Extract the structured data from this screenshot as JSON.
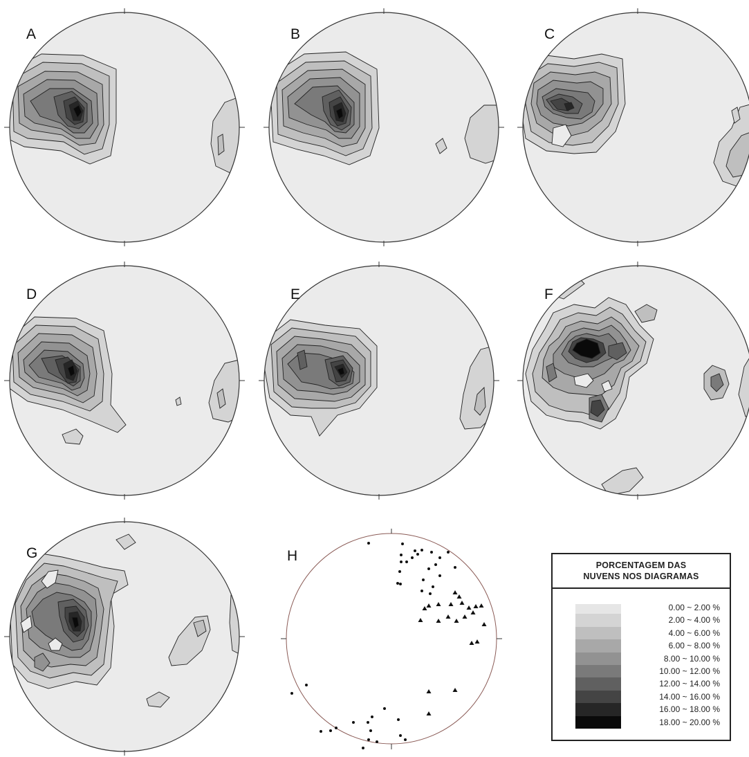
{
  "panels": [
    {
      "letter": "A"
    },
    {
      "letter": "B"
    },
    {
      "letter": "C"
    },
    {
      "letter": "D"
    },
    {
      "letter": "E"
    },
    {
      "letter": "F"
    },
    {
      "letter": "G"
    },
    {
      "letter": "H"
    }
  ],
  "legend": {
    "title_line1": "PORCENTAGEM DAS",
    "title_line2": "NUVENS NOS DIAGRAMAS",
    "classes": [
      {
        "label": "0.00 ~ 2.00 %",
        "color": "#e6e6e6"
      },
      {
        "label": "2.00 ~ 4.00 %",
        "color": "#d4d4d4"
      },
      {
        "label": "4.00 ~ 6.00 %",
        "color": "#bfbfbf"
      },
      {
        "label": "6.00 ~ 8.00 %",
        "color": "#a8a8a8"
      },
      {
        "label": "8.00 ~ 10.00 %",
        "color": "#929292"
      },
      {
        "label": "10.00 ~ 12.00 %",
        "color": "#7a7a7a"
      },
      {
        "label": "12.00 ~ 14.00 %",
        "color": "#606060"
      },
      {
        "label": "14.00 ~ 16.00 %",
        "color": "#444444"
      },
      {
        "label": "16.00 ~ 18.00 %",
        "color": "#262626"
      },
      {
        "label": "18.00 ~ 20.00 %",
        "color": "#0a0a0a"
      }
    ]
  }
}
